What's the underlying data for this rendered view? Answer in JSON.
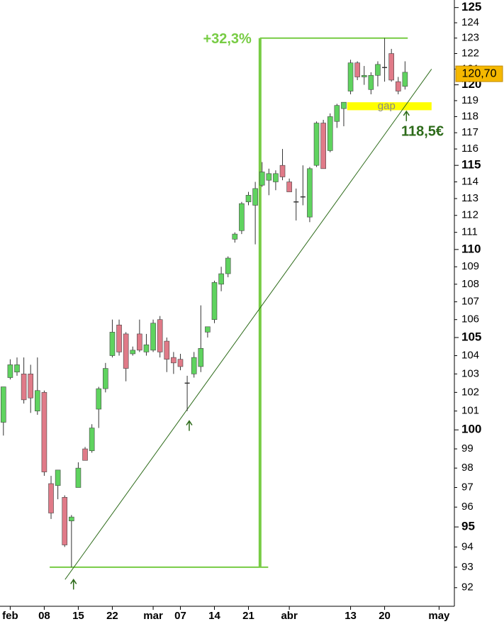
{
  "chart_data": {
    "type": "candlestick",
    "log_scale": true,
    "ylim": [
      91.1,
      125.5
    ],
    "yticks": [
      92,
      93,
      94,
      95,
      96,
      97,
      98,
      99,
      100,
      101,
      102,
      103,
      104,
      105,
      106,
      107,
      108,
      109,
      110,
      111,
      112,
      113,
      114,
      115,
      116,
      117,
      118,
      119,
      120,
      121,
      122,
      123,
      124,
      125
    ],
    "xlim": [
      -0.5,
      66.25
    ],
    "xticks": [
      {
        "value": 1,
        "label": "feb"
      },
      {
        "value": 6,
        "label": "08"
      },
      {
        "value": 11,
        "label": "15"
      },
      {
        "value": 16,
        "label": "22"
      },
      {
        "value": 22,
        "label": "mar"
      },
      {
        "value": 26,
        "label": "07"
      },
      {
        "value": 31,
        "label": "14"
      },
      {
        "value": 36,
        "label": "21"
      },
      {
        "value": 42,
        "label": "abr"
      },
      {
        "value": 51,
        "label": "13"
      },
      {
        "value": 56,
        "label": "20"
      },
      {
        "value": 64,
        "label": "may"
      }
    ],
    "up_color": "#5fd35f",
    "down_color": "#e07a88",
    "open": [
      100.4,
      102.8,
      103.1,
      103.0,
      103.0,
      101.0,
      102.0,
      97.2,
      97.1,
      96.5,
      95.3,
      97.0,
      99.0,
      98.9,
      101.1,
      102.2,
      104.0,
      105.7,
      105.2,
      104.1,
      105.2,
      104.2,
      104.3,
      106.0,
      104.8,
      103.9,
      103.8,
      102.5,
      103.0,
      103.4,
      105.3,
      106.0,
      108.0,
      108.6,
      110.6,
      111.1,
      112.8,
      112.6,
      113.8,
      114.1,
      114.0,
      115.0,
      114.0,
      112.8,
      113.1,
      111.9,
      115.0,
      117.6,
      115.9,
      117.7,
      118.5,
      119.6,
      121.4,
      120.5,
      119.7,
      120.6,
      121.1,
      122.0,
      120.2,
      119.9
    ],
    "high": [
      102.3,
      103.8,
      103.9,
      103.9,
      103.5,
      103.9,
      102.1,
      97.6,
      97.9,
      96.6,
      95.6,
      98.3,
      99.1,
      100.3,
      102.3,
      103.6,
      106.0,
      106.0,
      105.3,
      104.5,
      106.0,
      105.2,
      106.0,
      106.2,
      105.0,
      104.2,
      104.1,
      102.9,
      104.2,
      106.8,
      105.6,
      108.2,
      109.0,
      109.6,
      111.0,
      112.8,
      113.4,
      114.0,
      115.2,
      114.8,
      114.7,
      116.0,
      114.2,
      113.6,
      115.0,
      114.9,
      117.7,
      117.8,
      118.2,
      118.8,
      118.9,
      121.6,
      121.5,
      121.2,
      120.8,
      121.5,
      123.0,
      122.3,
      120.5,
      121.5
    ],
    "low": [
      99.7,
      102.7,
      102.9,
      101.4,
      100.9,
      100.8,
      97.6,
      95.4,
      96.4,
      94.0,
      93.0,
      97.0,
      98.4,
      98.8,
      100.1,
      102.0,
      103.9,
      104.0,
      102.6,
      104.0,
      104.2,
      104.0,
      104.2,
      103.9,
      103.1,
      103.0,
      103.2,
      101.0,
      102.8,
      103.1,
      105.0,
      105.8,
      107.6,
      108.4,
      110.4,
      110.9,
      112.6,
      110.3,
      113.7,
      113.2,
      113.5,
      114.1,
      113.4,
      111.7,
      112.6,
      111.6,
      114.9,
      114.8,
      115.8,
      117.3,
      117.4,
      119.4,
      120.3,
      120.0,
      119.4,
      119.9,
      120.2,
      120.2,
      119.4,
      119.7
    ],
    "close": [
      102.3,
      103.5,
      103.5,
      101.6,
      101.7,
      102.1,
      97.8,
      95.7,
      97.9,
      94.1,
      95.5,
      98.0,
      98.4,
      100.1,
      102.2,
      103.3,
      105.3,
      104.2,
      103.3,
      104.3,
      104.3,
      104.6,
      105.8,
      104.2,
      103.8,
      103.6,
      103.4,
      102.5,
      103.9,
      104.4,
      105.6,
      108.1,
      108.6,
      109.5,
      110.9,
      112.7,
      113.2,
      113.6,
      114.6,
      114.5,
      114.5,
      114.3,
      113.4,
      112.8,
      113.1,
      114.8,
      117.6,
      114.8,
      118.0,
      118.7,
      118.9,
      121.4,
      120.5,
      120.6,
      120.6,
      121.3,
      121.1,
      120.3,
      119.6,
      120.8
    ],
    "last_price": {
      "value": 120.7,
      "label": "120,70"
    },
    "measure": {
      "x": 37.7,
      "from": 93,
      "to": 123,
      "label": "+32,3%",
      "color": "#77cc44"
    },
    "hlines": [
      {
        "value": 123,
        "x": [
          37.7,
          59.4
        ]
      },
      {
        "value": 93,
        "x": [
          6.8,
          38.9
        ]
      }
    ],
    "gap": {
      "from": 118.4,
      "to": 118.9,
      "x": [
        50.5,
        62.9
      ],
      "label": "gap",
      "color": "#ffff00"
    },
    "trendline": {
      "x": [
        9.06,
        62.9
      ],
      "y": [
        92.4,
        121.0
      ],
      "color": "#2d6b1a",
      "label": "118,5€"
    },
    "arrows": [
      {
        "x": 10.3,
        "y": 92.6
      },
      {
        "x": 27.3,
        "y": 100.7
      },
      {
        "x": 59.2,
        "y": 118.6
      }
    ]
  }
}
